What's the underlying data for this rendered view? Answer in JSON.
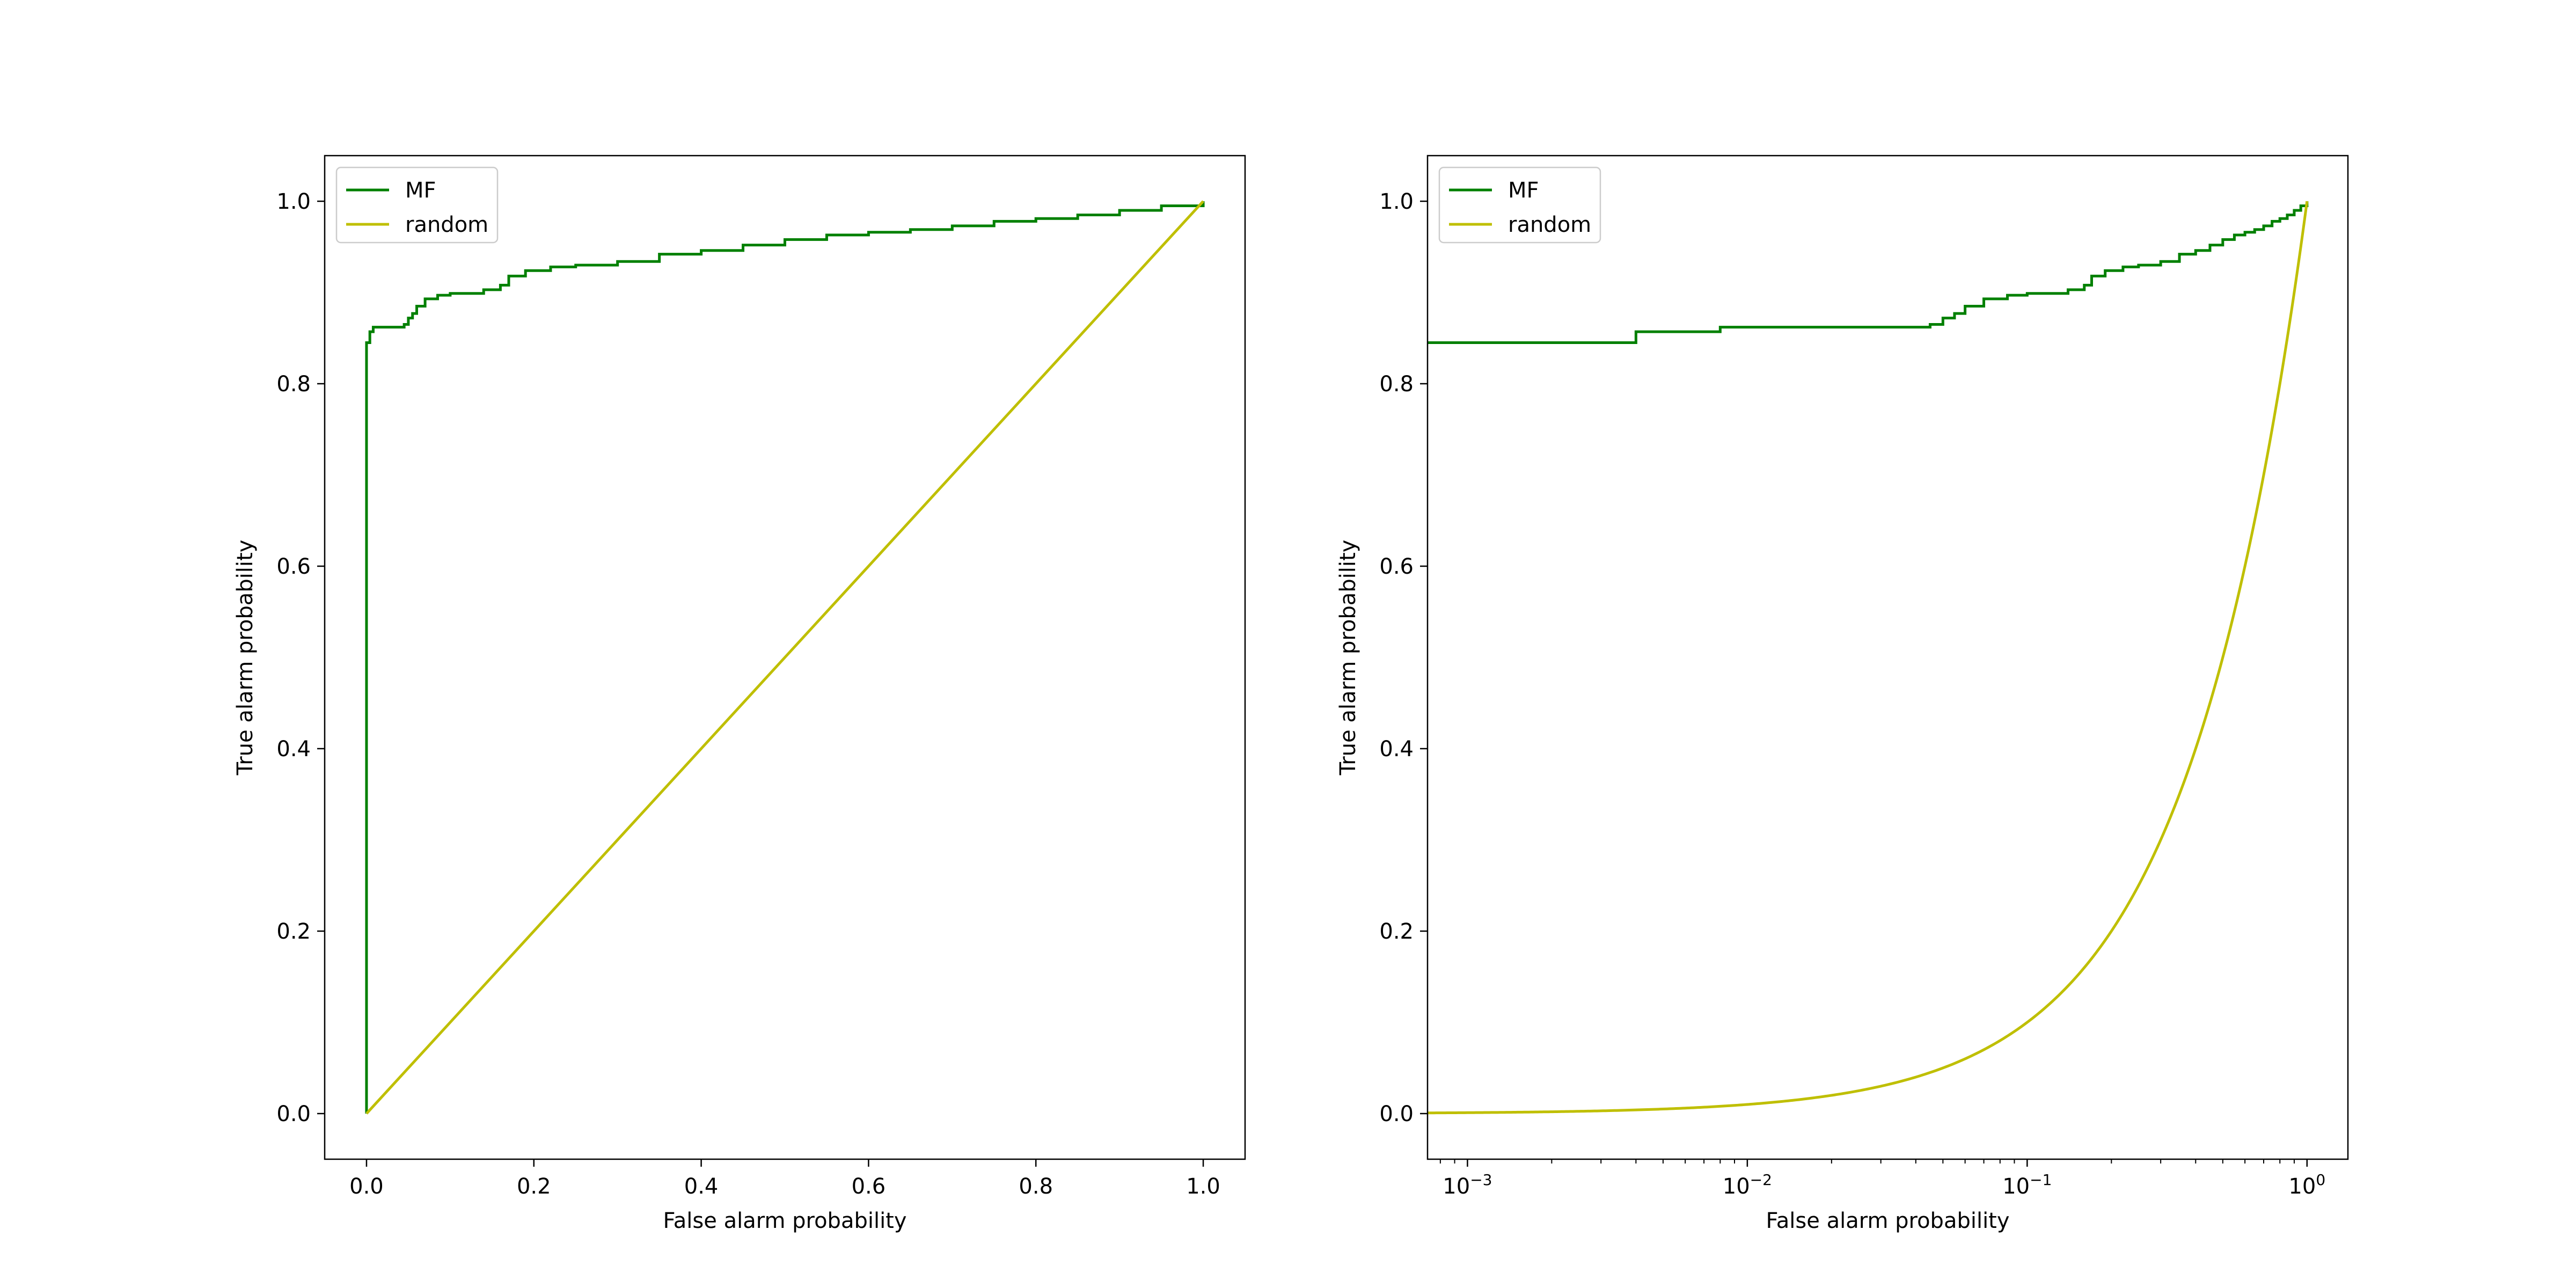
{
  "chart_data": [
    {
      "type": "line",
      "xlabel": "False alarm probability",
      "ylabel": "True alarm probability",
      "xscale": "linear",
      "xlim": [
        -0.05,
        1.05
      ],
      "ylim": [
        -0.05,
        1.05
      ],
      "xticks": [
        0.0,
        0.2,
        0.4,
        0.6,
        0.8,
        1.0
      ],
      "xtick_labels": [
        "0.0",
        "0.2",
        "0.4",
        "0.6",
        "0.8",
        "1.0"
      ],
      "yticks": [
        0.0,
        0.2,
        0.4,
        0.6,
        0.8,
        1.0
      ],
      "ytick_labels": [
        "0.0",
        "0.2",
        "0.4",
        "0.6",
        "0.8",
        "1.0"
      ],
      "grid": false,
      "legend": "upper left",
      "series": [
        {
          "name": "MF",
          "color": "#008000",
          "step": true,
          "points": [
            [
              0.0,
              0.0
            ],
            [
              0.0,
              0.845
            ],
            [
              0.004,
              0.845
            ],
            [
              0.004,
              0.857
            ],
            [
              0.008,
              0.857
            ],
            [
              0.008,
              0.862
            ],
            [
              0.02,
              0.862
            ],
            [
              0.045,
              0.865
            ],
            [
              0.05,
              0.872
            ],
            [
              0.055,
              0.877
            ],
            [
              0.06,
              0.885
            ],
            [
              0.07,
              0.893
            ],
            [
              0.085,
              0.897
            ],
            [
              0.1,
              0.899
            ],
            [
              0.14,
              0.903
            ],
            [
              0.16,
              0.908
            ],
            [
              0.17,
              0.918
            ],
            [
              0.19,
              0.924
            ],
            [
              0.22,
              0.928
            ],
            [
              0.25,
              0.93
            ],
            [
              0.3,
              0.934
            ],
            [
              0.35,
              0.942
            ],
            [
              0.4,
              0.946
            ],
            [
              0.45,
              0.952
            ],
            [
              0.5,
              0.958
            ],
            [
              0.55,
              0.963
            ],
            [
              0.6,
              0.966
            ],
            [
              0.65,
              0.969
            ],
            [
              0.7,
              0.973
            ],
            [
              0.75,
              0.978
            ],
            [
              0.8,
              0.981
            ],
            [
              0.85,
              0.985
            ],
            [
              0.9,
              0.99
            ],
            [
              0.95,
              0.995
            ],
            [
              1.0,
              1.0
            ]
          ]
        },
        {
          "name": "random",
          "color": "#bfbf00",
          "step": false,
          "points": [
            [
              0.0,
              0.0
            ],
            [
              1.0,
              1.0
            ]
          ]
        }
      ]
    },
    {
      "type": "line",
      "xlabel": "False alarm probability",
      "ylabel": "True alarm probability",
      "xscale": "log",
      "xlim": [
        0.00072,
        1.4
      ],
      "ylim": [
        -0.05,
        1.05
      ],
      "xticks": [
        0.001,
        0.01,
        0.1,
        1
      ],
      "xtick_labels": [
        [
          "10",
          "−3"
        ],
        [
          "10",
          "−2"
        ],
        [
          "10",
          "−1"
        ],
        [
          "10",
          "0"
        ]
      ],
      "yticks": [
        0.0,
        0.2,
        0.4,
        0.6,
        0.8,
        1.0
      ],
      "ytick_labels": [
        "0.0",
        "0.2",
        "0.4",
        "0.6",
        "0.8",
        "1.0"
      ],
      "grid": false,
      "legend": "upper left",
      "series": [
        {
          "name": "MF",
          "color": "#008000",
          "step": true,
          "points": [
            [
              0.0007,
              0.845
            ],
            [
              0.004,
              0.845
            ],
            [
              0.004,
              0.857
            ],
            [
              0.008,
              0.857
            ],
            [
              0.008,
              0.862
            ],
            [
              0.02,
              0.862
            ],
            [
              0.045,
              0.865
            ],
            [
              0.05,
              0.872
            ],
            [
              0.055,
              0.877
            ],
            [
              0.06,
              0.885
            ],
            [
              0.07,
              0.893
            ],
            [
              0.085,
              0.897
            ],
            [
              0.1,
              0.899
            ],
            [
              0.14,
              0.903
            ],
            [
              0.16,
              0.908
            ],
            [
              0.17,
              0.918
            ],
            [
              0.19,
              0.924
            ],
            [
              0.22,
              0.928
            ],
            [
              0.25,
              0.93
            ],
            [
              0.3,
              0.934
            ],
            [
              0.35,
              0.942
            ],
            [
              0.4,
              0.946
            ],
            [
              0.45,
              0.952
            ],
            [
              0.5,
              0.958
            ],
            [
              0.55,
              0.963
            ],
            [
              0.6,
              0.966
            ],
            [
              0.65,
              0.969
            ],
            [
              0.7,
              0.973
            ],
            [
              0.75,
              0.978
            ],
            [
              0.8,
              0.981
            ],
            [
              0.85,
              0.985
            ],
            [
              0.9,
              0.99
            ],
            [
              0.95,
              0.995
            ],
            [
              1.0,
              1.0
            ]
          ]
        },
        {
          "name": "random",
          "color": "#bfbf00",
          "step": false,
          "points": [
            [
              0.0007,
              0.0007
            ],
            [
              0.001,
              0.001
            ],
            [
              0.002,
              0.002
            ],
            [
              0.005,
              0.005
            ],
            [
              0.01,
              0.01
            ],
            [
              0.02,
              0.02
            ],
            [
              0.05,
              0.05
            ],
            [
              0.1,
              0.1
            ],
            [
              0.2,
              0.2
            ],
            [
              0.3,
              0.3
            ],
            [
              0.5,
              0.5
            ],
            [
              0.7,
              0.7
            ],
            [
              1.0,
              1.0
            ]
          ]
        }
      ]
    }
  ]
}
